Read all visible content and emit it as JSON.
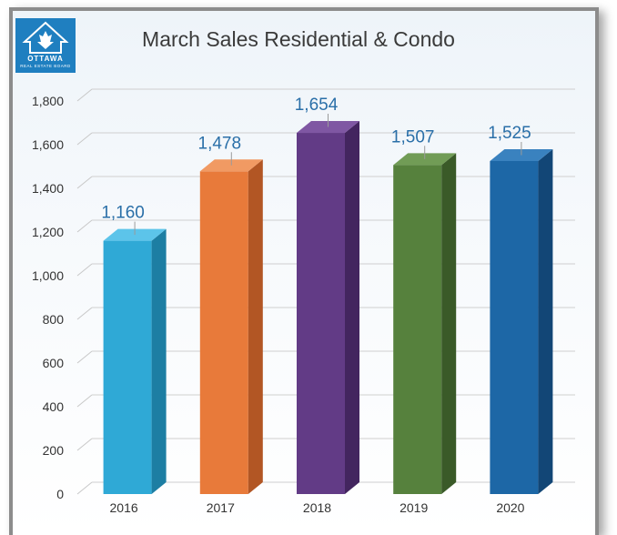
{
  "logo": {
    "line1": "OTTAWA",
    "line2": "REAL ESTATE BOARD"
  },
  "chart_data": {
    "type": "bar",
    "title": "March Sales Residential & Condo",
    "xlabel": "",
    "ylabel": "",
    "categories": [
      "2016",
      "2017",
      "2018",
      "2019",
      "2020"
    ],
    "values": [
      1160,
      1478,
      1654,
      1507,
      1525
    ],
    "value_labels": [
      "1,160",
      "1,478",
      "1,654",
      "1,507",
      "1,525"
    ],
    "ylim": [
      0,
      1800
    ],
    "yticks": [
      0,
      200,
      400,
      600,
      800,
      1000,
      1200,
      1400,
      1600,
      1800
    ],
    "ytick_labels": [
      "0",
      "200",
      "400",
      "600",
      "800",
      "1,000",
      "1,200",
      "1,400",
      "1,600",
      "1,800"
    ],
    "grid": true,
    "legend": "none",
    "colors": [
      {
        "front": "#2fa9d6",
        "side": "#1d7ea3",
        "top": "#5cc4ea"
      },
      {
        "front": "#e87a3a",
        "side": "#b25624",
        "top": "#f19a63"
      },
      {
        "front": "#623b86",
        "side": "#43255f",
        "top": "#7f57a3"
      },
      {
        "front": "#56813d",
        "side": "#3a5a28",
        "top": "#719c56"
      },
      {
        "front": "#1d67a6",
        "side": "#124676",
        "top": "#3a82bf"
      }
    ]
  }
}
